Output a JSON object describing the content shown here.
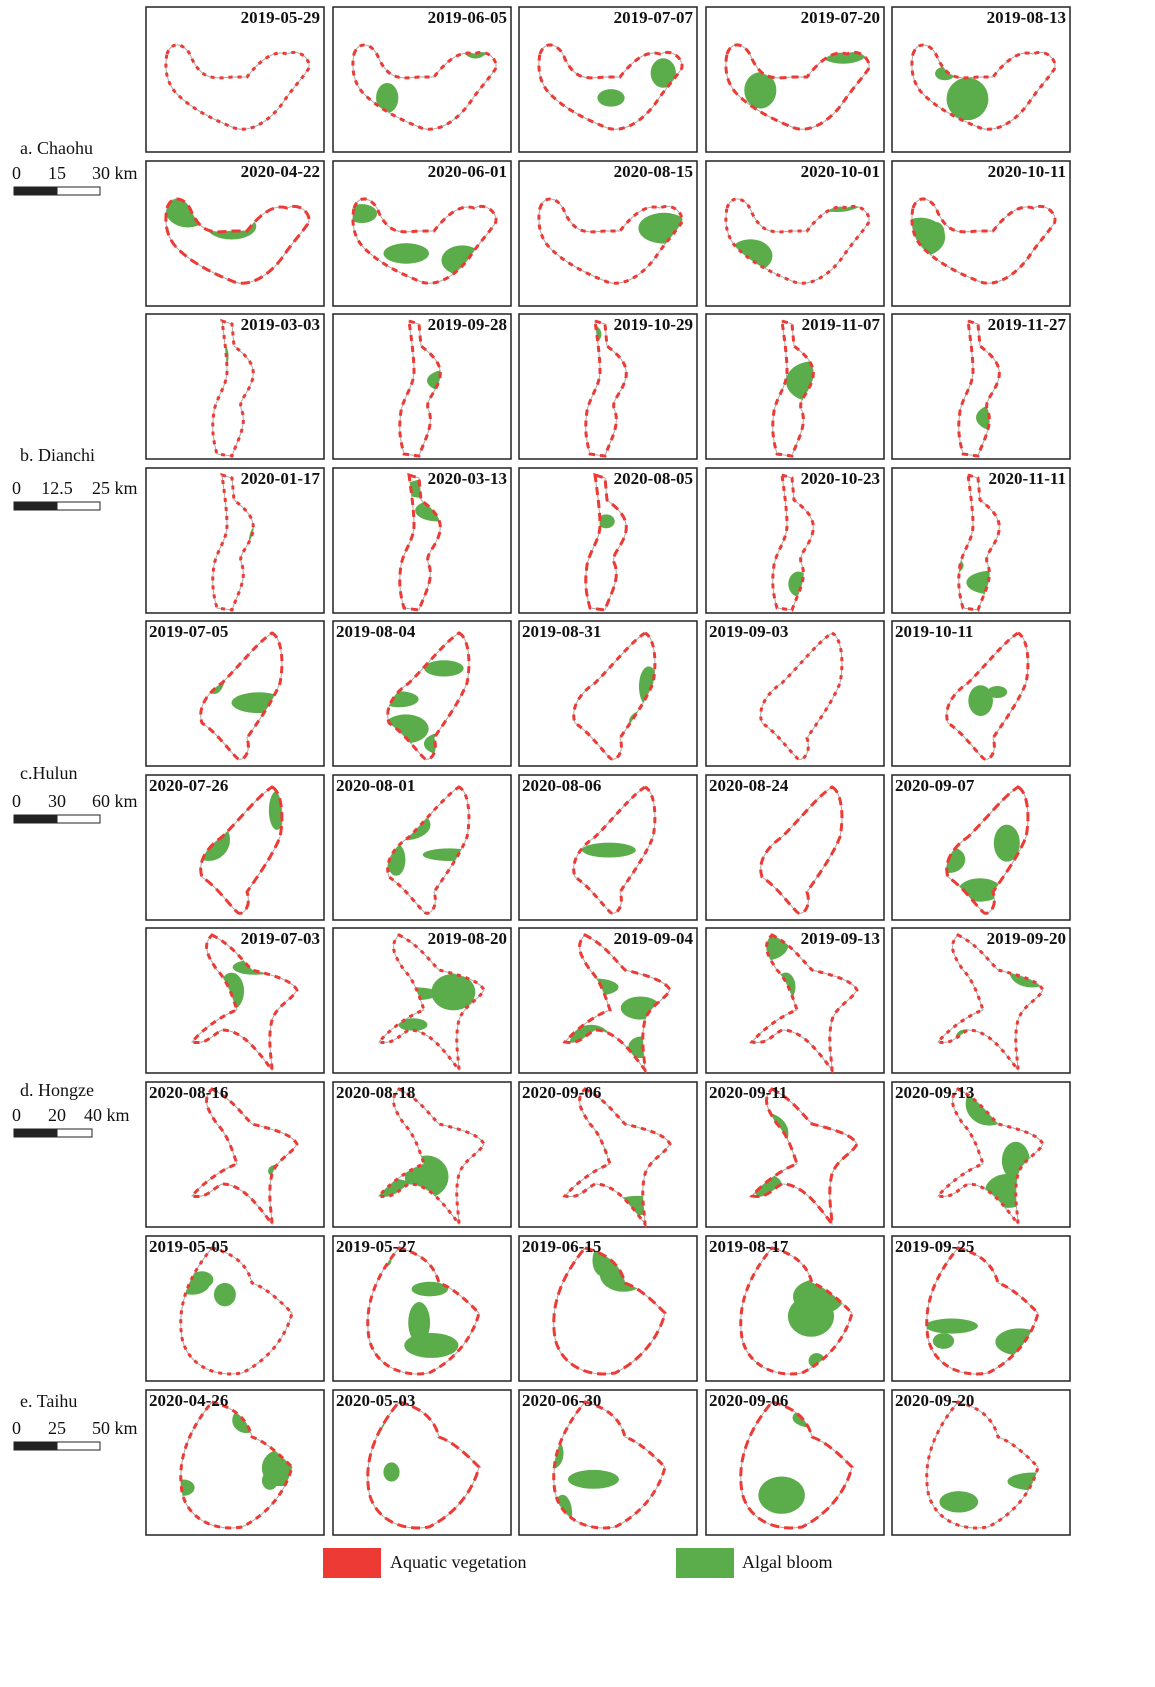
{
  "lakes": [
    {
      "name": "a. Chaohu",
      "scale": [
        "0",
        "15",
        "30 km"
      ],
      "rows": [
        [
          "2019-05-29",
          "2019-06-05",
          "2019-07-07",
          "2019-07-20",
          "2019-08-13"
        ],
        [
          "2020-04-22",
          "2020-06-01",
          "2020-08-15",
          "2020-10-01",
          "2020-10-11"
        ]
      ]
    },
    {
      "name": "b. Dianchi",
      "scale": [
        "0",
        "12.5",
        "25 km"
      ],
      "rows": [
        [
          "2019-03-03",
          "2019-09-28",
          "2019-10-29",
          "2019-11-07",
          "2019-11-27"
        ],
        [
          "2020-01-17",
          "2020-03-13",
          "2020-08-05",
          "2020-10-23",
          "2020-11-11"
        ]
      ]
    },
    {
      "name": "c.Hulun",
      "scale": [
        "0",
        "30",
        "60 km"
      ],
      "rows": [
        [
          "2019-07-05",
          "2019-08-04",
          "2019-08-31",
          "2019-09-03",
          "2019-10-11"
        ],
        [
          "2020-07-26",
          "2020-08-01",
          "2020-08-06",
          "2020-08-24",
          "2020-09-07"
        ]
      ]
    },
    {
      "name": "d. Hongze",
      "scale": [
        "0",
        "20",
        "40 km"
      ],
      "rows": [
        [
          "2019-07-03",
          "2019-08-20",
          "2019-09-04",
          "2019-09-13",
          "2019-09-20"
        ],
        [
          "2020-08-16",
          "2020-08-18",
          "2020-09-06",
          "2020-09-11",
          "2020-09-13"
        ]
      ]
    },
    {
      "name": "e. Taihu",
      "scale": [
        "0",
        "25",
        "50 km"
      ],
      "rows": [
        [
          "2019-05-05",
          "2019-05-27",
          "2019-06-15",
          "2019-08-17",
          "2019-09-25"
        ],
        [
          "2020-04-26",
          "2020-05-03",
          "2020-06-30",
          "2020-09-06",
          "2020-09-20"
        ]
      ]
    }
  ],
  "legend": [
    "Aquatic vegetation",
    "Algal bloom"
  ]
}
